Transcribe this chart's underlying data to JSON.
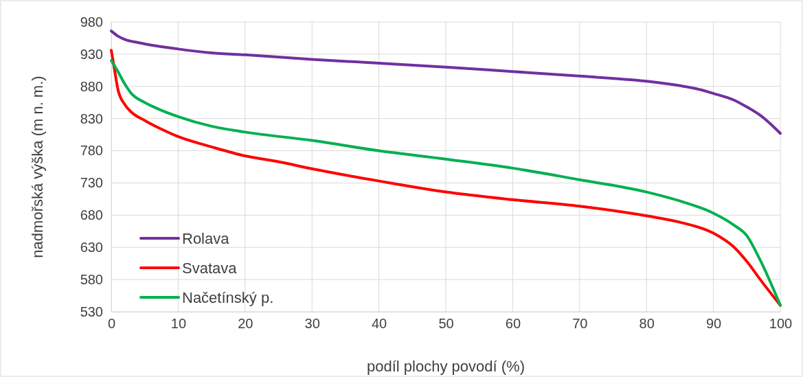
{
  "chart_data": {
    "type": "line",
    "xlabel": "podíl plochy povodí (%)",
    "ylabel": "nadmořská výška (m n. m.)",
    "xlim": [
      0,
      100
    ],
    "xticks": [
      0,
      10,
      20,
      30,
      40,
      50,
      60,
      70,
      80,
      90,
      100
    ],
    "ylim": [
      530,
      980
    ],
    "yticks": [
      530,
      580,
      630,
      680,
      730,
      780,
      830,
      880,
      930,
      980
    ],
    "grid": true,
    "legend": "bottom left",
    "marker": "none",
    "line_style": "solid",
    "series": [
      {
        "name": "Rolava",
        "color": "#7030a0",
        "x": [
          0,
          1,
          2,
          4,
          6,
          10,
          15,
          20,
          30,
          40,
          50,
          60,
          70,
          80,
          85,
          88,
          90,
          93,
          95,
          97,
          100
        ],
        "values": [
          966,
          958,
          953,
          948,
          944,
          938,
          932,
          929,
          922,
          916,
          910,
          903,
          896,
          888,
          881,
          875,
          869,
          859,
          848,
          835,
          807
        ]
      },
      {
        "name": "Svatava",
        "color": "#ff0000",
        "x": [
          0,
          0.5,
          1,
          2,
          3,
          5,
          7,
          10,
          15,
          20,
          25,
          30,
          40,
          50,
          60,
          70,
          80,
          85,
          90,
          93,
          95,
          97,
          100
        ],
        "values": [
          936,
          905,
          875,
          852,
          840,
          827,
          816,
          802,
          786,
          772,
          763,
          752,
          733,
          716,
          704,
          694,
          679,
          669,
          652,
          631,
          608,
          580,
          540
        ]
      },
      {
        "name": "Načetínský p.",
        "color": "#00b050",
        "x": [
          0,
          1,
          2,
          3,
          5,
          7,
          10,
          15,
          20,
          30,
          40,
          50,
          60,
          70,
          80,
          85,
          90,
          93,
          95,
          97,
          100
        ],
        "values": [
          920,
          903,
          884,
          869,
          855,
          845,
          833,
          818,
          809,
          796,
          780,
          767,
          753,
          735,
          716,
          702,
          683,
          665,
          648,
          610,
          540
        ]
      }
    ]
  }
}
